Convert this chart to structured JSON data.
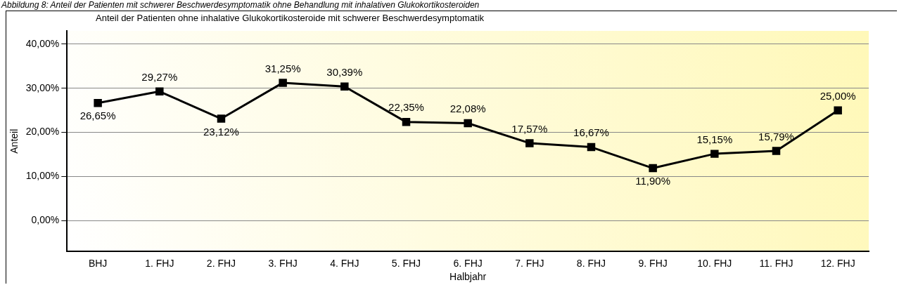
{
  "chart_data": {
    "type": "line",
    "title": "Anteil der Patienten ohne inhalative Glukokortikosteroide mit schwerer Beschwerdesymptomatik",
    "annotations": [
      "Abbildung 8: Anteil der Patienten mit schwerer Beschwerdesymptomatik ohne Behandlung mit inhalativen Glukokortikosteroiden"
    ],
    "xlabel": "Halbjahr",
    "ylabel": "Anteil",
    "categories": [
      "BHJ",
      "1. FHJ",
      "2. FHJ",
      "3. FHJ",
      "4. FHJ",
      "5. FHJ",
      "6. FHJ",
      "7. FHJ",
      "8. FHJ",
      "9. FHJ",
      "10. FHJ",
      "11. FHJ",
      "12. FHJ"
    ],
    "series": [
      {
        "color": "#000000",
        "values": [
          26.65,
          29.27,
          23.12,
          31.25,
          30.39,
          22.35,
          22.08,
          17.57,
          16.67,
          11.9,
          15.15,
          15.79,
          25.0
        ],
        "value_labels": [
          "26,65%",
          "29,27%",
          "23,12%",
          "31,25%",
          "30,39%",
          "22,35%",
          "22,08%",
          "17,57%",
          "16,67%",
          "11,90%",
          "15,15%",
          "15,79%",
          "25,00%"
        ]
      }
    ],
    "ylim": [
      -7,
      43
    ],
    "yticks": [
      {
        "value": 0,
        "label": "0,00%"
      },
      {
        "value": 10,
        "label": "10,00%"
      },
      {
        "value": 20,
        "label": "20,00%"
      },
      {
        "value": 30,
        "label": "30,00%"
      },
      {
        "value": 40,
        "label": "40,00%"
      }
    ],
    "grid": "y",
    "legend": false,
    "marker": "square",
    "line_style": "solid"
  }
}
